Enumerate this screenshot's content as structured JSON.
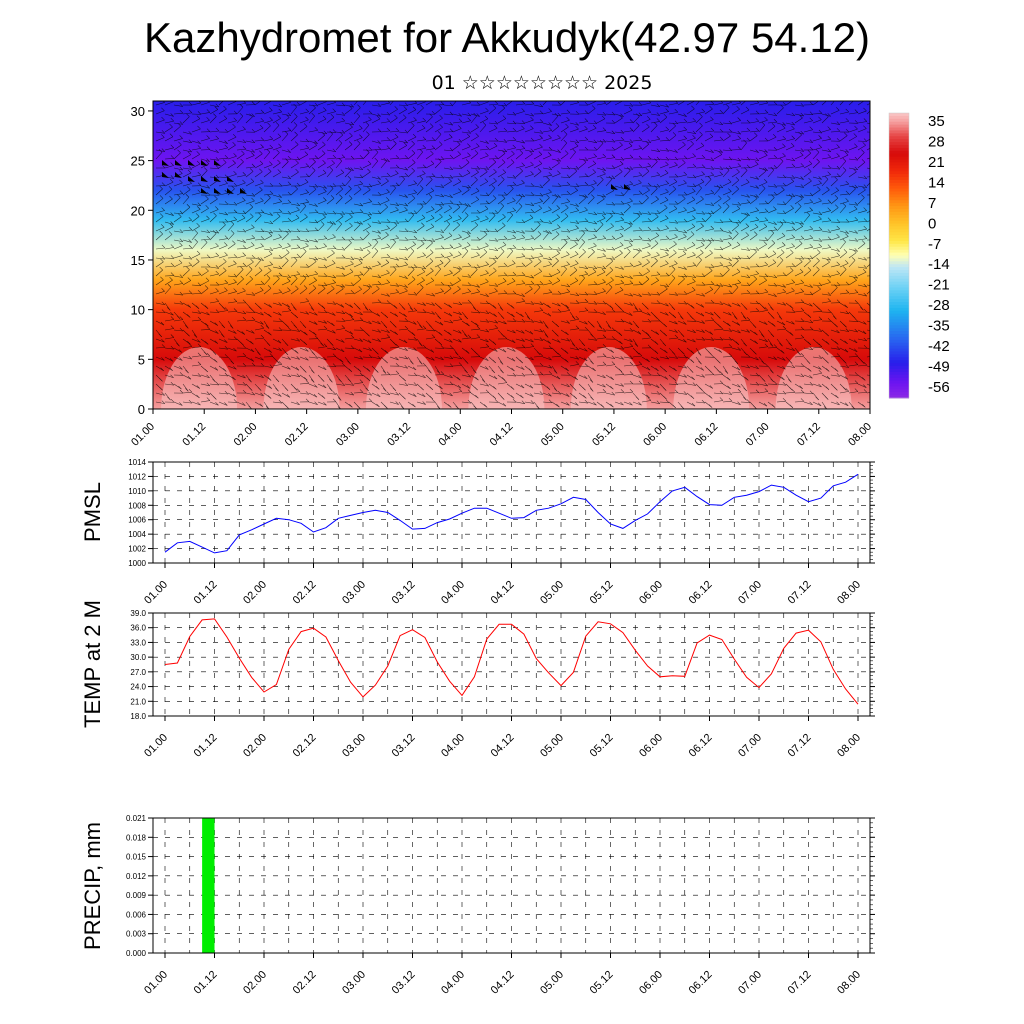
{
  "title": "Kazhydromet for Akkudyk(42.97 54.12)",
  "subtitle": "01 ☆☆☆☆☆☆☆☆ 2025",
  "x_tick_labels": [
    "01.00",
    "01.12",
    "02.00",
    "02.12",
    "03.00",
    "03.12",
    "04.00",
    "04.12",
    "05.00",
    "05.12",
    "06.00",
    "06.12",
    "07.00",
    "07.12",
    "08.00"
  ],
  "colors": {
    "pmsl_line": "#0000ff",
    "temp_line": "#ff0000",
    "precip_bar": "#00ee00",
    "grid": "#000000"
  },
  "chart_data": [
    {
      "type": "heatmap",
      "title": "",
      "description_kind": "vertical cross-section with wind barbs",
      "y_ticks": [
        0,
        5,
        10,
        15,
        20,
        25,
        30
      ],
      "ylim": [
        0,
        31
      ],
      "colorbar_labels": [
        "35",
        "28",
        "21",
        "14",
        "7",
        "0",
        "-7",
        "-14",
        "-21",
        "-28",
        "-35",
        "-42",
        "-49",
        "-56"
      ],
      "colorbar_range": [
        -60,
        38
      ],
      "layers": [
        {
          "level": 0,
          "value": 35
        },
        {
          "level": 5,
          "value": 24
        },
        {
          "level": 10,
          "value": 16
        },
        {
          "level": 13,
          "value": 4
        },
        {
          "level": 16,
          "value": -12
        },
        {
          "level": 19,
          "value": -28
        },
        {
          "level": 22,
          "value": -42
        },
        {
          "level": 25,
          "value": -55
        },
        {
          "level": 31,
          "value": -48
        }
      ]
    },
    {
      "type": "line",
      "ylabel": "PMSL",
      "ylim": [
        1000,
        1014
      ],
      "y_ticks": [
        "1000",
        "1002",
        "1004",
        "1006",
        "1008",
        "1010",
        "1012",
        "1014"
      ],
      "x": [
        0,
        3,
        6,
        9,
        12,
        15,
        18,
        21,
        24,
        27,
        30,
        33,
        36,
        39,
        42,
        45,
        48,
        51,
        54,
        57,
        60,
        63,
        66,
        69,
        72,
        75,
        78,
        81,
        84,
        87,
        90,
        93,
        96,
        99,
        102,
        105,
        108,
        111,
        114,
        117,
        120,
        123,
        126,
        129,
        132,
        135,
        138,
        141,
        144,
        147,
        150,
        153,
        156,
        159,
        162,
        165,
        168
      ],
      "series": [
        {
          "values": [
            1001.5,
            1002.8,
            1003.0,
            1002.2,
            1001.4,
            1001.7,
            1003.9,
            1004.6,
            1005.4,
            1006.2,
            1006.0,
            1005.5,
            1004.3,
            1004.9,
            1006.2,
            1006.6,
            1007.0,
            1007.3,
            1007.0,
            1005.9,
            1004.7,
            1004.8,
            1005.6,
            1006.1,
            1006.9,
            1007.6,
            1007.6,
            1006.9,
            1006.2,
            1006.3,
            1007.3,
            1007.6,
            1008.2,
            1009.1,
            1008.8,
            1007.0,
            1005.4,
            1004.8,
            1005.9,
            1006.8,
            1008.5,
            1010.0,
            1010.5,
            1009.2,
            1008.1,
            1008.0,
            1009.1,
            1009.4,
            1009.9,
            1010.8,
            1010.5,
            1009.4,
            1008.5,
            1009.0,
            1010.7,
            1011.2,
            1012.3
          ]
        }
      ]
    },
    {
      "type": "line",
      "ylabel": "TEMP at 2 M",
      "ylim": [
        18.0,
        39.0
      ],
      "y_ticks": [
        "18.0",
        "21.0",
        "24.0",
        "27.0",
        "30.0",
        "33.0",
        "36.0",
        "39.0"
      ],
      "x": [
        0,
        3,
        6,
        9,
        12,
        15,
        18,
        21,
        24,
        27,
        30,
        33,
        36,
        39,
        42,
        45,
        48,
        51,
        54,
        57,
        60,
        63,
        66,
        69,
        72,
        75,
        78,
        81,
        84,
        87,
        90,
        93,
        96,
        99,
        102,
        105,
        108,
        111,
        114,
        117,
        120,
        123,
        126,
        129,
        132,
        135,
        138,
        141,
        144,
        147,
        150,
        153,
        156,
        159,
        162,
        165,
        168
      ],
      "series": [
        {
          "values": [
            28.5,
            28.8,
            34.2,
            37.6,
            37.8,
            34.1,
            29.8,
            25.9,
            22.9,
            24.4,
            31.6,
            35.2,
            35.9,
            34.1,
            29.3,
            24.9,
            21.9,
            24.3,
            28.2,
            34.4,
            35.6,
            34.0,
            29.0,
            25.1,
            22.2,
            26.0,
            33.7,
            36.7,
            36.7,
            34.7,
            29.7,
            26.8,
            24.2,
            26.9,
            34.3,
            37.2,
            36.8,
            35.0,
            31.4,
            28.2,
            26.0,
            26.2,
            26.1,
            32.9,
            34.5,
            33.6,
            29.6,
            25.9,
            23.8,
            26.6,
            31.8,
            34.9,
            35.5,
            33.1,
            27.5,
            23.5,
            20.4
          ]
        }
      ]
    },
    {
      "type": "bar",
      "ylabel": "PRECIP, mm",
      "ylim": [
        0.0,
        0.021
      ],
      "y_ticks": [
        "0.000",
        "0.003",
        "0.006",
        "0.009",
        "0.012",
        "0.015",
        "0.018",
        "0.021"
      ],
      "x": [
        10.5
      ],
      "values": [
        0.021
      ],
      "bar_width_hours": 3
    }
  ]
}
